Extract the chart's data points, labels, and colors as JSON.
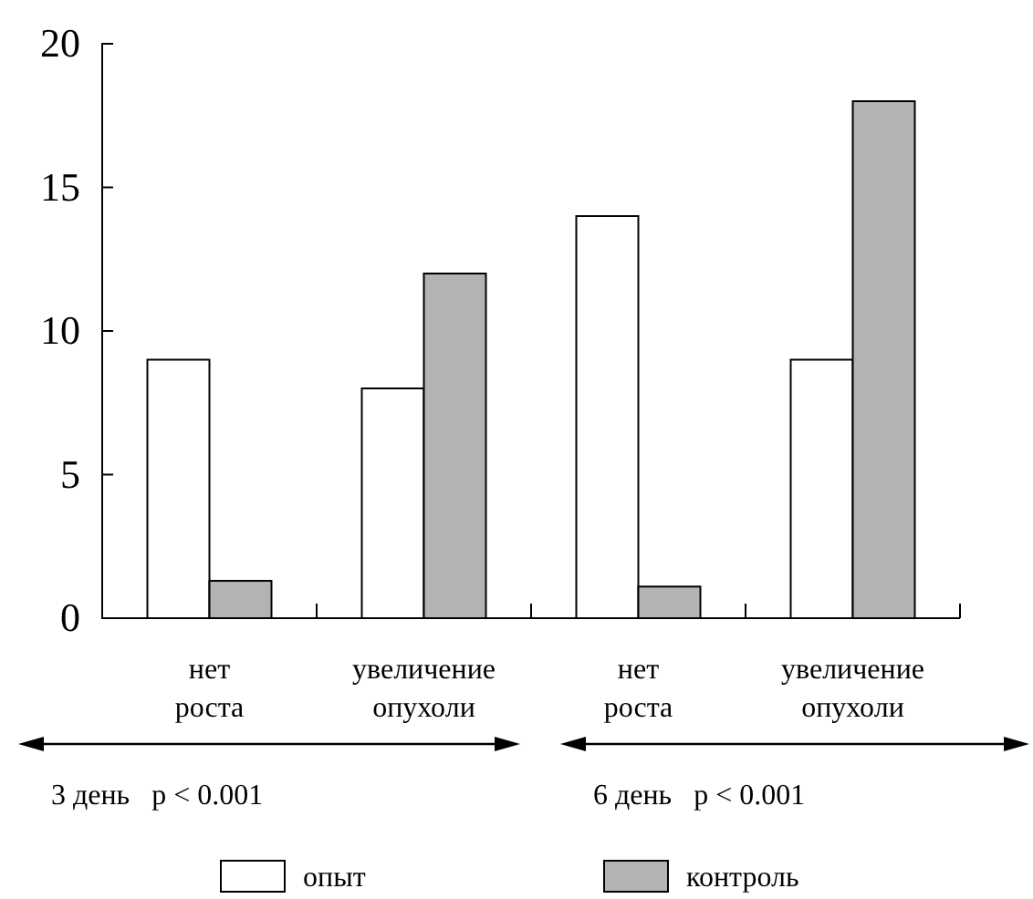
{
  "chart_data": {
    "type": "bar",
    "categories": [
      "нет роста",
      "увеличение опухоли",
      "нет роста",
      "увеличение опухоли"
    ],
    "series": [
      {
        "name": "опыт",
        "color": "#ffffff",
        "values": [
          9,
          8,
          14,
          9
        ]
      },
      {
        "name": "контроль",
        "color": "#b3b3b3",
        "values": [
          1.3,
          12,
          1.1,
          18
        ]
      }
    ],
    "ylim": [
      0,
      20
    ],
    "yticks": [
      0,
      5,
      10,
      15,
      20
    ],
    "grid": false,
    "legend": "bottom",
    "annotations": [
      "3 день   p < 0.001",
      "6 день   p < 0.001"
    ]
  }
}
